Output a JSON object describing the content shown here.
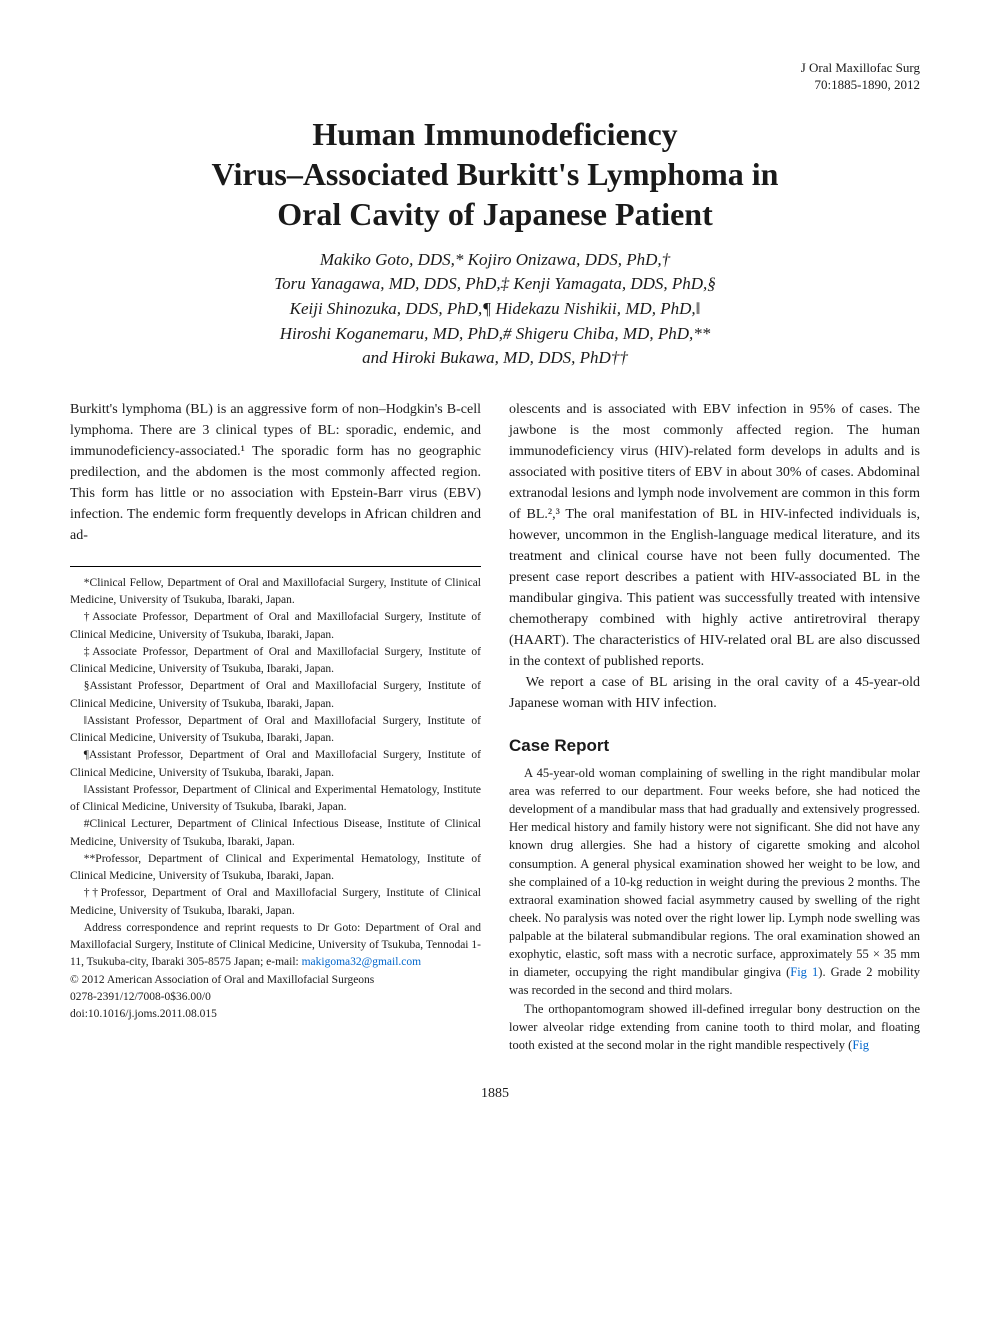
{
  "journal": {
    "name": "J Oral Maxillofac Surg",
    "citation": "70:1885-1890, 2012"
  },
  "title_lines": [
    "Human Immunodeficiency",
    "Virus–Associated Burkitt's Lymphoma in",
    "Oral Cavity of Japanese Patient"
  ],
  "authors_lines": [
    "Makiko Goto, DDS,* Kojiro Onizawa, DDS, PhD,†",
    "Toru Yanagawa, MD, DDS, PhD,‡ Kenji Yamagata, DDS, PhD,§",
    "Keiji Shinozuka, DDS, PhD,¶ Hidekazu Nishikii, MD, PhD,‖",
    "Hiroshi Koganemaru, MD, PhD,# Shigeru Chiba, MD, PhD,**",
    "and Hiroki Bukawa, MD, DDS, PhD††"
  ],
  "intro_left": "Burkitt's lymphoma (BL) is an aggressive form of non–Hodgkin's B-cell lymphoma. There are 3 clinical types of BL: sporadic, endemic, and immunodeficiency-associated.¹ The sporadic form has no geographic predilection, and the abdomen is the most commonly affected region. This form has little or no association with Epstein-Barr virus (EBV) infection. The endemic form frequently develops in African children and ad-",
  "affiliations": [
    "*Clinical Fellow, Department of Oral and Maxillofacial Surgery, Institute of Clinical Medicine, University of Tsukuba, Ibaraki, Japan.",
    "†Associate Professor, Department of Oral and Maxillofacial Surgery, Institute of Clinical Medicine, University of Tsukuba, Ibaraki, Japan.",
    "‡Associate Professor, Department of Oral and Maxillofacial Surgery, Institute of Clinical Medicine, University of Tsukuba, Ibaraki, Japan.",
    "§Assistant Professor, Department of Oral and Maxillofacial Surgery, Institute of Clinical Medicine, University of Tsukuba, Ibaraki, Japan.",
    "‖Assistant Professor, Department of Oral and Maxillofacial Surgery, Institute of Clinical Medicine, University of Tsukuba, Ibaraki, Japan.",
    "¶Assistant Professor, Department of Oral and Maxillofacial Surgery, Institute of Clinical Medicine, University of Tsukuba, Ibaraki, Japan.",
    "‖Assistant Professor, Department of Clinical and Experimental Hematology, Institute of Clinical Medicine, University of Tsukuba, Ibaraki, Japan.",
    "#Clinical Lecturer, Department of Clinical Infectious Disease, Institute of Clinical Medicine, University of Tsukuba, Ibaraki, Japan.",
    "**Professor, Department of Clinical and Experimental Hematology, Institute of Clinical Medicine, University of Tsukuba, Ibaraki, Japan.",
    "††Professor, Department of Oral and Maxillofacial Surgery, Institute of Clinical Medicine, University of Tsukuba, Ibaraki, Japan."
  ],
  "correspondence_prefix": "Address correspondence and reprint requests to Dr Goto: Department of Oral and Maxillofacial Surgery, Institute of Clinical Medicine, University of Tsukuba, Tennodai 1-11, Tsukuba-city, Ibaraki 305-8575 Japan; e-mail: ",
  "email": "makigoma32@gmail.com",
  "copyright_lines": [
    "© 2012 American Association of Oral and Maxillofacial Surgeons",
    "0278-2391/12/7008-0$36.00/0",
    "doi:10.1016/j.joms.2011.08.015"
  ],
  "intro_right_p1": "olescents and is associated with EBV infection in 95% of cases. The jawbone is the most commonly affected region. The human immunodeficiency virus (HIV)-related form develops in adults and is associated with positive titers of EBV in about 30% of cases. Abdominal extranodal lesions and lymph node involvement are common in this form of BL.²,³ The oral manifestation of BL in HIV-infected individuals is, however, uncommon in the English-language medical literature, and its treatment and clinical course have not been fully documented. The present case report describes a patient with HIV-associated BL in the mandibular gingiva. This patient was successfully treated with intensive chemotherapy combined with highly active antiretroviral therapy (HAART). The characteristics of HIV-related oral BL are also discussed in the context of published reports.",
  "intro_right_p2": "We report a case of BL arising in the oral cavity of a 45-year-old Japanese woman with HIV infection.",
  "section_case": "Case Report",
  "case_p1_prefix": "A 45-year-old woman complaining of swelling in the right mandibular molar area was referred to our department. Four weeks before, she had noticed the development of a mandibular mass that had gradually and extensively progressed. Her medical history and family history were not significant. She did not have any known drug allergies. She had a history of cigarette smoking and alcohol consumption. A general physical examination showed her weight to be low, and she complained of a 10-kg reduction in weight during the previous 2 months. The extraoral examination showed facial asymmetry caused by swelling of the right cheek. No paralysis was noted over the right lower lip. Lymph node swelling was palpable at the bilateral submandibular regions. The oral examination showed an exophytic, elastic, soft mass with a necrotic surface, approximately 55 × 35 mm in diameter, occupying the right mandibular gingiva (",
  "fig1_label": "Fig 1",
  "case_p1_suffix": "). Grade 2 mobility was recorded in the second and third molars.",
  "case_p2_prefix": "The orthopantomogram showed ill-defined irregular bony destruction on the lower alveolar ridge extending from canine tooth to third molar, and floating tooth existed at the second molar in the right mandible respectively (",
  "fig_tail": "Fig",
  "page_number": "1885",
  "colors": {
    "text": "#1a1a1a",
    "link": "#0066cc",
    "background": "#ffffff",
    "rule": "#000000"
  },
  "typography": {
    "title_pt": 32,
    "authors_pt": 17,
    "body_pt": 14,
    "affil_pt": 11.5,
    "case_pt": 12.5,
    "section_head_pt": 17
  }
}
